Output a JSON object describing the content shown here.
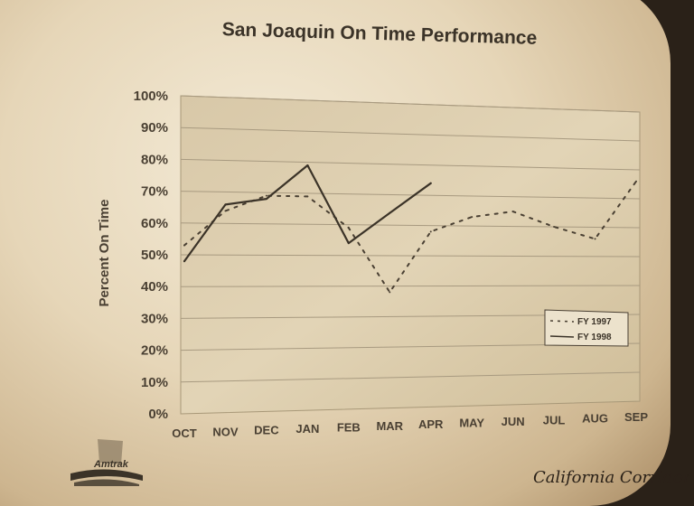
{
  "brand": {
    "logo_text": "Amtrak",
    "corner_text": "California Corridor"
  },
  "chart_data": {
    "type": "line",
    "title": "San Joaquin On Time Performance",
    "xlabel": "",
    "ylabel": "Percent On Time",
    "categories": [
      "OCT",
      "NOV",
      "DEC",
      "JAN",
      "FEB",
      "MAR",
      "APR",
      "MAY",
      "JUN",
      "JUL",
      "AUG",
      "SEP"
    ],
    "y_ticks": [
      "0%",
      "10%",
      "20%",
      "30%",
      "40%",
      "50%",
      "60%",
      "70%",
      "80%",
      "90%",
      "100%"
    ],
    "ylim": [
      0,
      100
    ],
    "grid": true,
    "legend_position": "bottom-right",
    "series": [
      {
        "name": "FY 1997",
        "style": "dotted",
        "color": "#4a4033",
        "values": [
          53,
          64,
          69,
          69,
          59,
          38,
          58,
          63,
          65,
          60,
          56,
          76
        ]
      },
      {
        "name": "FY 1998",
        "style": "solid",
        "color": "#3b3328",
        "values": [
          48,
          66,
          68,
          79,
          54,
          64,
          74,
          null,
          null,
          null,
          null,
          null
        ]
      }
    ]
  }
}
